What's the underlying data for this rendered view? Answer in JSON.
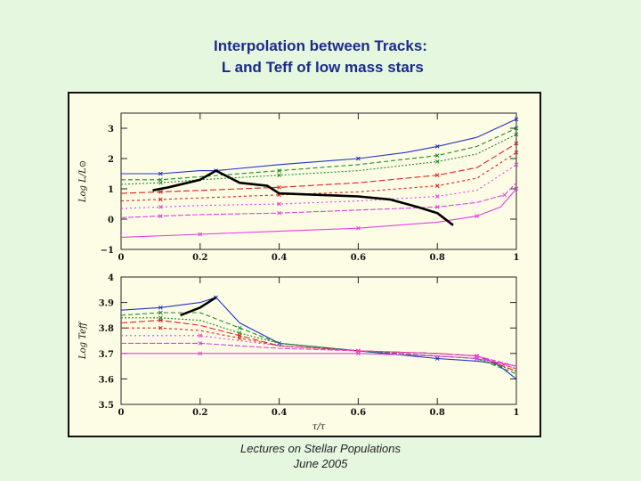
{
  "header": {
    "title_line1": "Interpolation between Tracks:",
    "title_line2": " L and Teff of low mass stars"
  },
  "footer": {
    "line1": "Lectures on Stellar Populations",
    "line2": "June 2005"
  },
  "colors": {
    "background": "#e6f7e0",
    "figure_bg": "#fdfde6",
    "title": "#1b2a8c",
    "track_colors": [
      "#2233cc",
      "#1a8a2a",
      "#e02020",
      "#e040e0"
    ]
  },
  "chart_data": [
    {
      "type": "line",
      "panel": "top",
      "ylabel": "Log L/L⊙",
      "xlabel": "",
      "xlim": [
        0,
        1
      ],
      "ylim": [
        -1,
        3.5
      ],
      "xticks": [
        "0",
        "0.2",
        "0.4",
        "0.6",
        "0.8",
        "1"
      ],
      "yticks": [
        "−1",
        "0",
        "1",
        "2",
        "3"
      ],
      "grid": false,
      "series": [
        {
          "color": "blue",
          "x": [
            0,
            0.1,
            0.2,
            0.24,
            0.4,
            0.6,
            0.72,
            0.8,
            0.9,
            1
          ],
          "y": [
            1.5,
            1.5,
            1.6,
            1.6,
            1.8,
            2.0,
            2.2,
            2.4,
            2.7,
            3.3
          ]
        },
        {
          "color": "green",
          "x": [
            0,
            0.1,
            0.2,
            0.4,
            0.6,
            0.8,
            0.9,
            1
          ],
          "y": [
            1.3,
            1.3,
            1.4,
            1.6,
            1.8,
            2.1,
            2.4,
            3.0
          ]
        },
        {
          "color": "green",
          "x": [
            0,
            0.1,
            0.2,
            0.4,
            0.6,
            0.8,
            0.9,
            1
          ],
          "y": [
            1.15,
            1.2,
            1.3,
            1.45,
            1.6,
            1.9,
            2.15,
            2.8
          ]
        },
        {
          "color": "red",
          "x": [
            0,
            0.1,
            0.2,
            0.4,
            0.6,
            0.8,
            0.9,
            1
          ],
          "y": [
            0.85,
            0.9,
            0.95,
            1.05,
            1.2,
            1.45,
            1.7,
            2.5
          ]
        },
        {
          "color": "red",
          "x": [
            0,
            0.1,
            0.2,
            0.4,
            0.6,
            0.8,
            0.9,
            1
          ],
          "y": [
            0.6,
            0.65,
            0.7,
            0.8,
            0.9,
            1.1,
            1.35,
            2.2
          ]
        },
        {
          "color": "magenta",
          "x": [
            0,
            0.1,
            0.2,
            0.4,
            0.6,
            0.8,
            0.9,
            1
          ],
          "y": [
            0.35,
            0.4,
            0.45,
            0.5,
            0.6,
            0.75,
            0.95,
            1.8
          ]
        },
        {
          "color": "magenta",
          "x": [
            0,
            0.1,
            0.2,
            0.4,
            0.6,
            0.8,
            0.9,
            0.97,
            1
          ],
          "y": [
            0.05,
            0.1,
            0.15,
            0.2,
            0.3,
            0.4,
            0.55,
            0.8,
            1.2
          ]
        },
        {
          "color": "magenta",
          "x": [
            0,
            0.2,
            0.4,
            0.6,
            0.8,
            0.9,
            0.96,
            1
          ],
          "y": [
            -0.6,
            -0.5,
            -0.4,
            -0.3,
            -0.1,
            0.1,
            0.4,
            1.0
          ]
        }
      ],
      "interpolated_track": {
        "color": "black",
        "x": [
          0.08,
          0.12,
          0.2,
          0.24,
          0.3,
          0.37,
          0.4,
          0.5,
          0.6,
          0.68,
          0.75,
          0.8,
          0.84
        ],
        "y": [
          0.95,
          1.05,
          1.3,
          1.6,
          1.2,
          1.1,
          0.85,
          0.8,
          0.75,
          0.65,
          0.4,
          0.2,
          -0.2
        ]
      }
    },
    {
      "type": "line",
      "panel": "bottom",
      "ylabel": "Log Teff",
      "xlabel": "τ/τ",
      "xlim": [
        0,
        1
      ],
      "ylim": [
        3.5,
        4.0
      ],
      "xticks": [
        "0",
        "0.2",
        "0.4",
        "0.6",
        "0.8",
        "1"
      ],
      "yticks": [
        "3.5",
        "3.6",
        "3.7",
        "3.8",
        "3.9",
        "4"
      ],
      "grid": false,
      "series": [
        {
          "color": "blue",
          "x": [
            0,
            0.1,
            0.2,
            0.24,
            0.3,
            0.4,
            0.6,
            0.8,
            0.9,
            0.95,
            1
          ],
          "y": [
            3.87,
            3.88,
            3.9,
            3.92,
            3.82,
            3.74,
            3.71,
            3.68,
            3.67,
            3.66,
            3.6
          ]
        },
        {
          "color": "green",
          "x": [
            0,
            0.1,
            0.2,
            0.3,
            0.4,
            0.6,
            0.8,
            0.9,
            1
          ],
          "y": [
            3.85,
            3.86,
            3.86,
            3.8,
            3.74,
            3.71,
            3.69,
            3.68,
            3.62
          ]
        },
        {
          "color": "green",
          "x": [
            0,
            0.1,
            0.2,
            0.3,
            0.4,
            0.6,
            0.8,
            0.9,
            1
          ],
          "y": [
            3.84,
            3.84,
            3.83,
            3.78,
            3.74,
            3.71,
            3.69,
            3.68,
            3.63
          ]
        },
        {
          "color": "red",
          "x": [
            0,
            0.1,
            0.2,
            0.3,
            0.4,
            0.6,
            0.8,
            0.9,
            1
          ],
          "y": [
            3.82,
            3.83,
            3.81,
            3.77,
            3.73,
            3.71,
            3.7,
            3.69,
            3.63
          ]
        },
        {
          "color": "red",
          "x": [
            0,
            0.1,
            0.2,
            0.3,
            0.4,
            0.6,
            0.8,
            0.9,
            1
          ],
          "y": [
            3.8,
            3.8,
            3.79,
            3.76,
            3.73,
            3.71,
            3.7,
            3.69,
            3.64
          ]
        },
        {
          "color": "magenta",
          "x": [
            0,
            0.2,
            0.4,
            0.6,
            0.8,
            0.9,
            1
          ],
          "y": [
            3.77,
            3.77,
            3.73,
            3.71,
            3.7,
            3.69,
            3.64
          ]
        },
        {
          "color": "magenta",
          "x": [
            0,
            0.2,
            0.4,
            0.6,
            0.8,
            0.9,
            1
          ],
          "y": [
            3.74,
            3.74,
            3.72,
            3.71,
            3.7,
            3.69,
            3.65
          ]
        },
        {
          "color": "magenta",
          "x": [
            0,
            0.2,
            0.4,
            0.6,
            0.8,
            0.9,
            1
          ],
          "y": [
            3.7,
            3.7,
            3.7,
            3.7,
            3.69,
            3.68,
            3.65
          ]
        }
      ],
      "interpolated_track": {
        "color": "black",
        "x": [
          0.15,
          0.2,
          0.24
        ],
        "y": [
          3.85,
          3.88,
          3.92
        ]
      }
    }
  ]
}
